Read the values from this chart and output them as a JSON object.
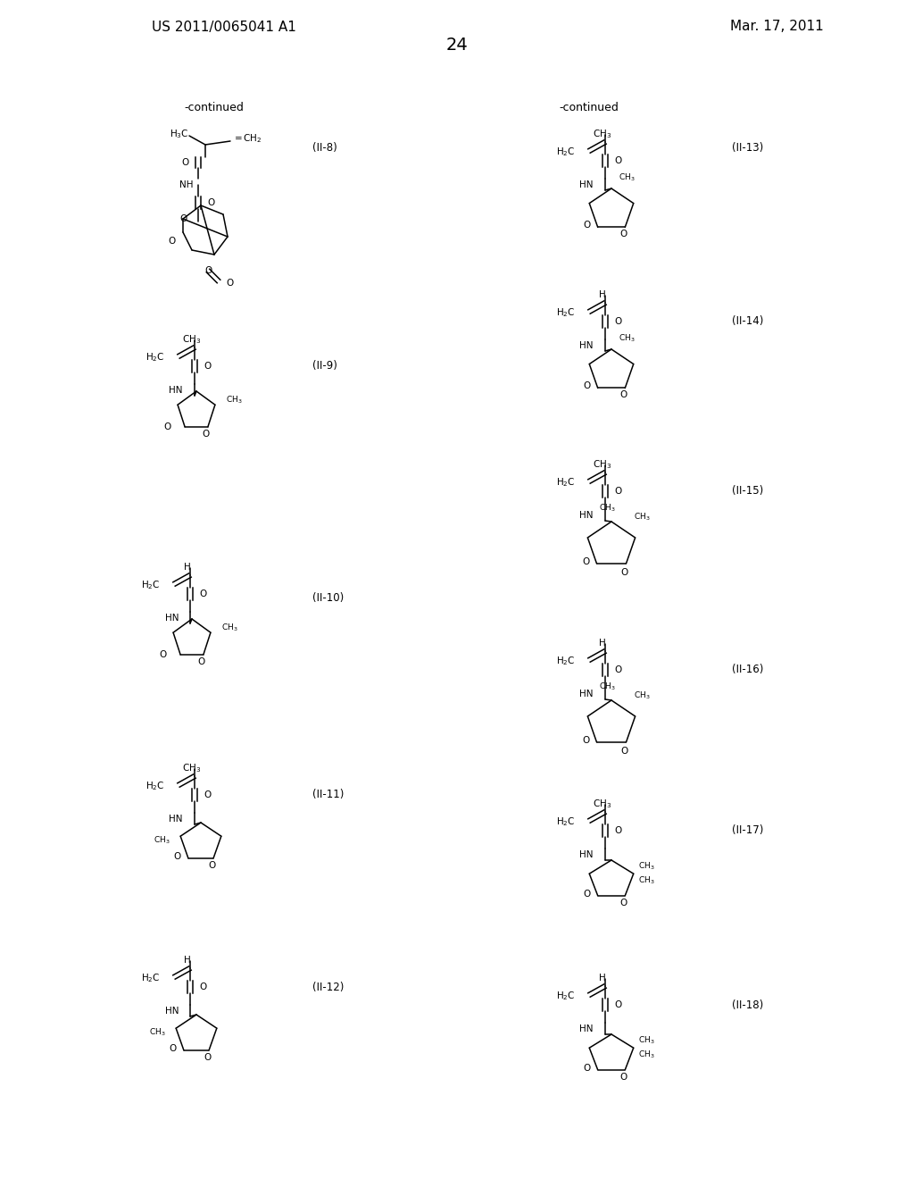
{
  "page_number": "24",
  "patent_number": "US 2011/0065041 A1",
  "patent_date": "Mar. 17, 2011",
  "background_color": "#ffffff",
  "text_color": "#000000",
  "continued_labels": [
    "-continued",
    "-continued"
  ],
  "compound_labels": [
    "(II-8)",
    "(II-9)",
    "(II-10)",
    "(II-11)",
    "(II-12)",
    "(II-13)",
    "(II-14)",
    "(II-15)",
    "(II-16)",
    "(II-17)",
    "(II-18)"
  ],
  "font_size_header": 11,
  "font_size_label": 9,
  "font_size_atom": 8,
  "font_size_page": 12
}
